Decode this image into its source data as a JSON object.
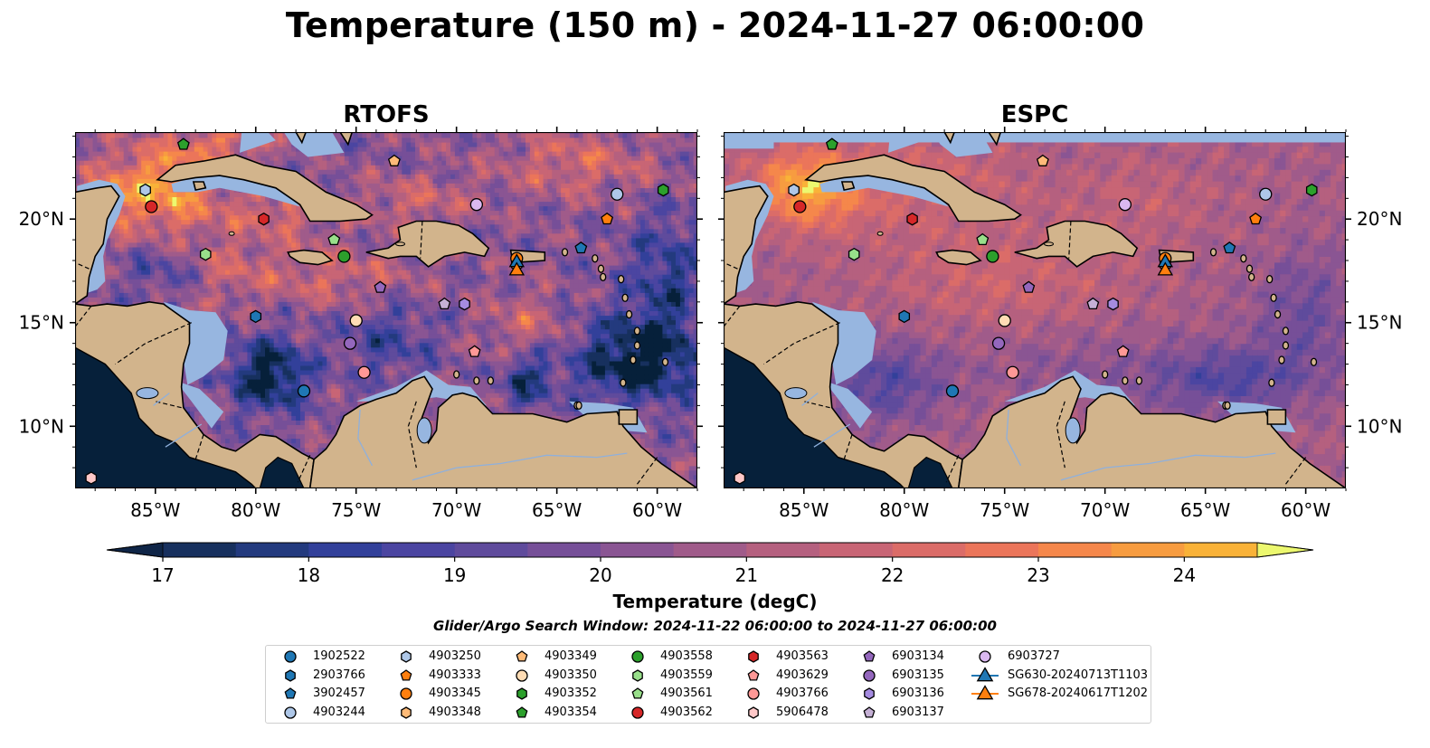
{
  "title": "Temperature (150 m) - 2024-11-27 06:00:00",
  "panels": [
    {
      "name": "rtofs",
      "title": "RTOFS"
    },
    {
      "name": "espc",
      "title": "ESPC"
    }
  ],
  "map": {
    "lon_range": [
      -89,
      -58
    ],
    "lat_range": [
      7,
      24.2
    ],
    "lon_ticks": [
      -85,
      -80,
      -75,
      -70,
      -65,
      -60
    ],
    "lon_tick_labels": [
      "85°W",
      "80°W",
      "75°W",
      "70°W",
      "65°W",
      "60°W"
    ],
    "lat_ticks": [
      10,
      15,
      20
    ],
    "lat_tick_labels": [
      "10°N",
      "15°N",
      "20°N"
    ],
    "colors": {
      "land": "#d2b48c",
      "shelf": "#97b6e0"
    }
  },
  "colorbar": {
    "label": "Temperature (degC)",
    "min": 17,
    "max": 24.5,
    "step": 0.5,
    "tick_values": [
      17,
      18,
      19,
      20,
      21,
      22,
      23,
      24
    ],
    "tick_labels": [
      "17",
      "18",
      "19",
      "20",
      "21",
      "22",
      "23",
      "24"
    ],
    "extend": "both",
    "colors": [
      "#0f2547",
      "#17305e",
      "#233a7e",
      "#32409a",
      "#4b45a1",
      "#5f4b9c",
      "#764f98",
      "#8a5593",
      "#a05b8a",
      "#b5607f",
      "#c86575",
      "#db6c68",
      "#eb755a",
      "#f5874b",
      "#f79c40",
      "#f9b238",
      "#f7cb48",
      "#f4e55f"
    ],
    "under_color": "#06203a",
    "over_color": "#ecf86f"
  },
  "search_window": "Glider/Argo Search Window: 2024-11-22 06:00:00 to 2024-11-27 06:00:00",
  "floats": [
    {
      "id": "1902522",
      "marker": "circle",
      "color": "#1f77b4",
      "lon": -77.6,
      "lat": 11.7
    },
    {
      "id": "2903766",
      "marker": "hexagon",
      "color": "#1f77b4",
      "lon": -80.0,
      "lat": 15.3
    },
    {
      "id": "3902457",
      "marker": "pentagon",
      "color": "#1f77b4",
      "lon": -63.8,
      "lat": 18.6
    },
    {
      "id": "4903244",
      "marker": "circle",
      "color": "#aec7e8",
      "lon": -62.0,
      "lat": 21.2
    },
    {
      "id": "4903250",
      "marker": "hexagon",
      "color": "#aec7e8",
      "lon": -85.5,
      "lat": 21.4
    },
    {
      "id": "4903333",
      "marker": "pentagon",
      "color": "#ff7f0e",
      "lon": -62.5,
      "lat": 20.0
    },
    {
      "id": "4903345",
      "marker": "circle",
      "color": "#ff7f0e",
      "lon": -67.0,
      "lat": 18.1
    },
    {
      "id": "4903348",
      "marker": "hexagon",
      "color": "#ffbb78",
      "lon": -67.0,
      "lat": 17.8
    },
    {
      "id": "4903349",
      "marker": "pentagon",
      "color": "#ffbb78",
      "lon": -73.1,
      "lat": 22.8
    },
    {
      "id": "4903350",
      "marker": "circle",
      "color": "#ffdcb4",
      "lon": -75.0,
      "lat": 15.1
    },
    {
      "id": "4903352",
      "marker": "hexagon",
      "color": "#2ca02c",
      "lon": -59.7,
      "lat": 21.4
    },
    {
      "id": "4903354",
      "marker": "pentagon",
      "color": "#2ca02c",
      "lon": -83.6,
      "lat": 23.6
    },
    {
      "id": "4903558",
      "marker": "circle",
      "color": "#2ca02c",
      "lon": -75.6,
      "lat": 18.2
    },
    {
      "id": "4903559",
      "marker": "hexagon",
      "color": "#98df8a",
      "lon": -82.5,
      "lat": 18.3
    },
    {
      "id": "4903561",
      "marker": "pentagon",
      "color": "#98df8a",
      "lon": -76.1,
      "lat": 19.0
    },
    {
      "id": "4903562",
      "marker": "circle",
      "color": "#d62728",
      "lon": -85.2,
      "lat": 20.6
    },
    {
      "id": "4903563",
      "marker": "hexagon",
      "color": "#d62728",
      "lon": -79.6,
      "lat": 20.0
    },
    {
      "id": "4903629",
      "marker": "pentagon",
      "color": "#ff9896",
      "lon": -69.1,
      "lat": 13.6
    },
    {
      "id": "4903766",
      "marker": "circle",
      "color": "#ff9896",
      "lon": -74.6,
      "lat": 12.6
    },
    {
      "id": "5906478",
      "marker": "hexagon",
      "color": "#ffc8c8",
      "lon": -88.2,
      "lat": 7.5
    },
    {
      "id": "6903134",
      "marker": "pentagon",
      "color": "#9467bd",
      "lon": -73.8,
      "lat": 16.7
    },
    {
      "id": "6903135",
      "marker": "circle",
      "color": "#9467bd",
      "lon": -75.3,
      "lat": 14.0
    },
    {
      "id": "6903136",
      "marker": "hexagon",
      "color": "#a58be0",
      "lon": -69.6,
      "lat": 15.9
    },
    {
      "id": "6903137",
      "marker": "pentagon",
      "color": "#c5b0d5",
      "lon": -70.6,
      "lat": 15.9
    },
    {
      "id": "6903727",
      "marker": "circle",
      "color": "#dab8f0",
      "lon": -69.0,
      "lat": 20.7
    },
    {
      "id": "SG630-20240713T1103",
      "marker": "triangle",
      "color": "#1f77b4",
      "lon": -67.0,
      "lat": 17.9,
      "line": true
    },
    {
      "id": "SG678-20240617T1202",
      "marker": "triangle",
      "color": "#ff7f0e",
      "lon": -67.0,
      "lat": 17.5,
      "line": true
    }
  ]
}
